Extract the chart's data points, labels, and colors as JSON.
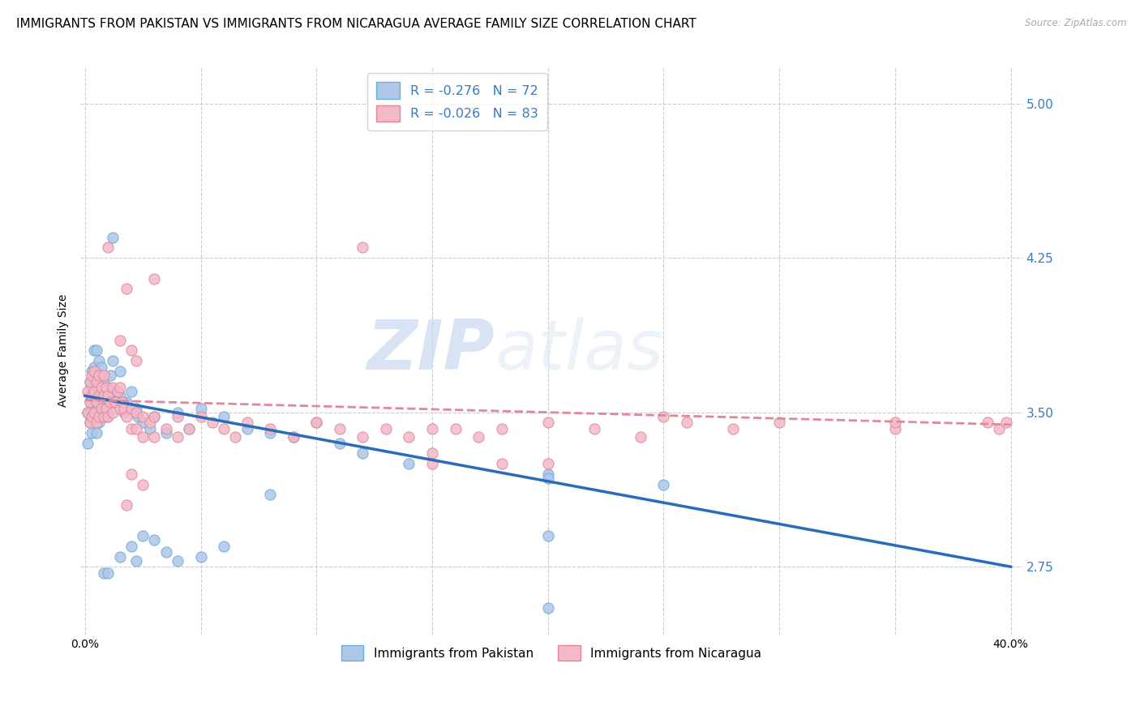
{
  "title": "IMMIGRANTS FROM PAKISTAN VS IMMIGRANTS FROM NICARAGUA AVERAGE FAMILY SIZE CORRELATION CHART",
  "source": "Source: ZipAtlas.com",
  "ylabel": "Average Family Size",
  "yticks": [
    2.75,
    3.5,
    4.25,
    5.0
  ],
  "xticks": [
    0.0,
    0.05,
    0.1,
    0.15,
    0.2,
    0.25,
    0.3,
    0.35,
    0.4
  ],
  "xlim": [
    -0.002,
    0.405
  ],
  "ylim": [
    2.42,
    5.18
  ],
  "pakistan_color": "#aec6e8",
  "pakistan_edge": "#6baed6",
  "pakistan_line_color": "#2b6cb8",
  "nicaragua_color": "#f4b8c8",
  "nicaragua_edge": "#e08898",
  "nicaragua_line_color": "#e08898",
  "r_pakistan": -0.276,
  "n_pakistan": 72,
  "r_nicaragua": -0.026,
  "n_nicaragua": 83,
  "legend_label_pakistan": "Immigrants from Pakistan",
  "legend_label_nicaragua": "Immigrants from Nicaragua",
  "watermark_zip": "ZIP",
  "watermark_atlas": "atlas",
  "title_fontsize": 11,
  "axis_label_fontsize": 10,
  "tick_fontsize": 10,
  "pakistan_line_x0": 0.0,
  "pakistan_line_y0": 3.58,
  "pakistan_line_x1": 0.4,
  "pakistan_line_y1": 2.75,
  "nicaragua_line_x0": 0.0,
  "nicaragua_line_y0": 3.56,
  "nicaragua_line_x1": 0.4,
  "nicaragua_line_y1": 3.44,
  "pakistan_x": [
    0.001,
    0.001,
    0.002,
    0.002,
    0.002,
    0.003,
    0.003,
    0.003,
    0.003,
    0.004,
    0.004,
    0.004,
    0.004,
    0.005,
    0.005,
    0.005,
    0.005,
    0.005,
    0.006,
    0.006,
    0.006,
    0.006,
    0.007,
    0.007,
    0.007,
    0.008,
    0.008,
    0.009,
    0.009,
    0.01,
    0.01,
    0.011,
    0.011,
    0.012,
    0.012,
    0.013,
    0.014,
    0.015,
    0.015,
    0.016,
    0.017,
    0.018,
    0.02,
    0.022,
    0.023,
    0.025,
    0.028,
    0.03,
    0.035,
    0.04,
    0.045,
    0.05,
    0.06,
    0.07,
    0.08,
    0.09,
    0.1,
    0.11,
    0.12,
    0.14,
    0.015,
    0.02,
    0.025,
    0.03,
    0.035,
    0.04,
    0.05,
    0.06,
    0.08,
    0.25,
    0.2,
    0.2
  ],
  "pakistan_y": [
    3.35,
    3.5,
    3.45,
    3.55,
    3.65,
    3.4,
    3.52,
    3.62,
    3.7,
    3.5,
    3.6,
    3.72,
    3.8,
    3.4,
    3.52,
    3.62,
    3.7,
    3.8,
    3.45,
    3.55,
    3.65,
    3.75,
    3.52,
    3.62,
    3.72,
    3.55,
    3.65,
    3.48,
    3.58,
    3.5,
    3.62,
    3.55,
    3.68,
    3.6,
    3.75,
    3.55,
    3.6,
    3.58,
    3.7,
    3.55,
    3.5,
    3.55,
    3.6,
    3.52,
    3.48,
    3.45,
    3.42,
    3.48,
    3.4,
    3.5,
    3.42,
    3.52,
    3.48,
    3.42,
    3.4,
    3.38,
    3.45,
    3.35,
    3.3,
    3.25,
    2.8,
    2.85,
    2.9,
    2.88,
    2.82,
    2.78,
    2.8,
    2.85,
    3.1,
    3.15,
    3.2,
    2.9
  ],
  "pakistan_outliers": [
    [
      0.012,
      4.35
    ],
    [
      0.008,
      2.72
    ],
    [
      0.01,
      2.72
    ],
    [
      0.022,
      2.78
    ],
    [
      0.2,
      3.18
    ],
    [
      0.2,
      2.55
    ]
  ],
  "nicaragua_x": [
    0.001,
    0.001,
    0.002,
    0.002,
    0.002,
    0.003,
    0.003,
    0.003,
    0.004,
    0.004,
    0.004,
    0.005,
    0.005,
    0.005,
    0.006,
    0.006,
    0.006,
    0.007,
    0.007,
    0.008,
    0.008,
    0.008,
    0.009,
    0.009,
    0.01,
    0.01,
    0.011,
    0.012,
    0.012,
    0.013,
    0.014,
    0.015,
    0.015,
    0.016,
    0.017,
    0.018,
    0.02,
    0.02,
    0.022,
    0.022,
    0.025,
    0.025,
    0.028,
    0.03,
    0.03,
    0.035,
    0.04,
    0.04,
    0.045,
    0.05,
    0.055,
    0.06,
    0.065,
    0.07,
    0.08,
    0.09,
    0.1,
    0.11,
    0.12,
    0.13,
    0.14,
    0.15,
    0.16,
    0.17,
    0.18,
    0.2,
    0.22,
    0.24,
    0.26,
    0.28,
    0.3,
    0.35,
    0.39,
    0.395,
    0.398
  ],
  "nicaragua_y": [
    3.5,
    3.6,
    3.45,
    3.55,
    3.65,
    3.48,
    3.58,
    3.68,
    3.5,
    3.6,
    3.7,
    3.45,
    3.55,
    3.65,
    3.48,
    3.58,
    3.68,
    3.52,
    3.62,
    3.48,
    3.58,
    3.68,
    3.52,
    3.62,
    3.48,
    3.58,
    3.55,
    3.5,
    3.62,
    3.55,
    3.6,
    3.52,
    3.62,
    3.55,
    3.52,
    3.48,
    3.52,
    3.42,
    3.5,
    3.42,
    3.48,
    3.38,
    3.45,
    3.48,
    3.38,
    3.42,
    3.48,
    3.38,
    3.42,
    3.48,
    3.45,
    3.42,
    3.38,
    3.45,
    3.42,
    3.38,
    3.45,
    3.42,
    3.38,
    3.42,
    3.38,
    3.3,
    3.42,
    3.38,
    3.42,
    3.45,
    3.42,
    3.38,
    3.45,
    3.42,
    3.45,
    3.42,
    3.45,
    3.42,
    3.45
  ],
  "nicaragua_outliers": [
    [
      0.01,
      4.3
    ],
    [
      0.018,
      4.1
    ],
    [
      0.03,
      4.15
    ],
    [
      0.12,
      4.3
    ],
    [
      0.015,
      3.85
    ],
    [
      0.02,
      3.8
    ],
    [
      0.022,
      3.75
    ],
    [
      0.15,
      3.25
    ],
    [
      0.02,
      3.2
    ],
    [
      0.025,
      3.15
    ],
    [
      0.018,
      3.05
    ],
    [
      0.15,
      3.42
    ],
    [
      0.2,
      3.25
    ],
    [
      0.25,
      3.48
    ],
    [
      0.35,
      3.45
    ],
    [
      0.18,
      3.25
    ]
  ]
}
